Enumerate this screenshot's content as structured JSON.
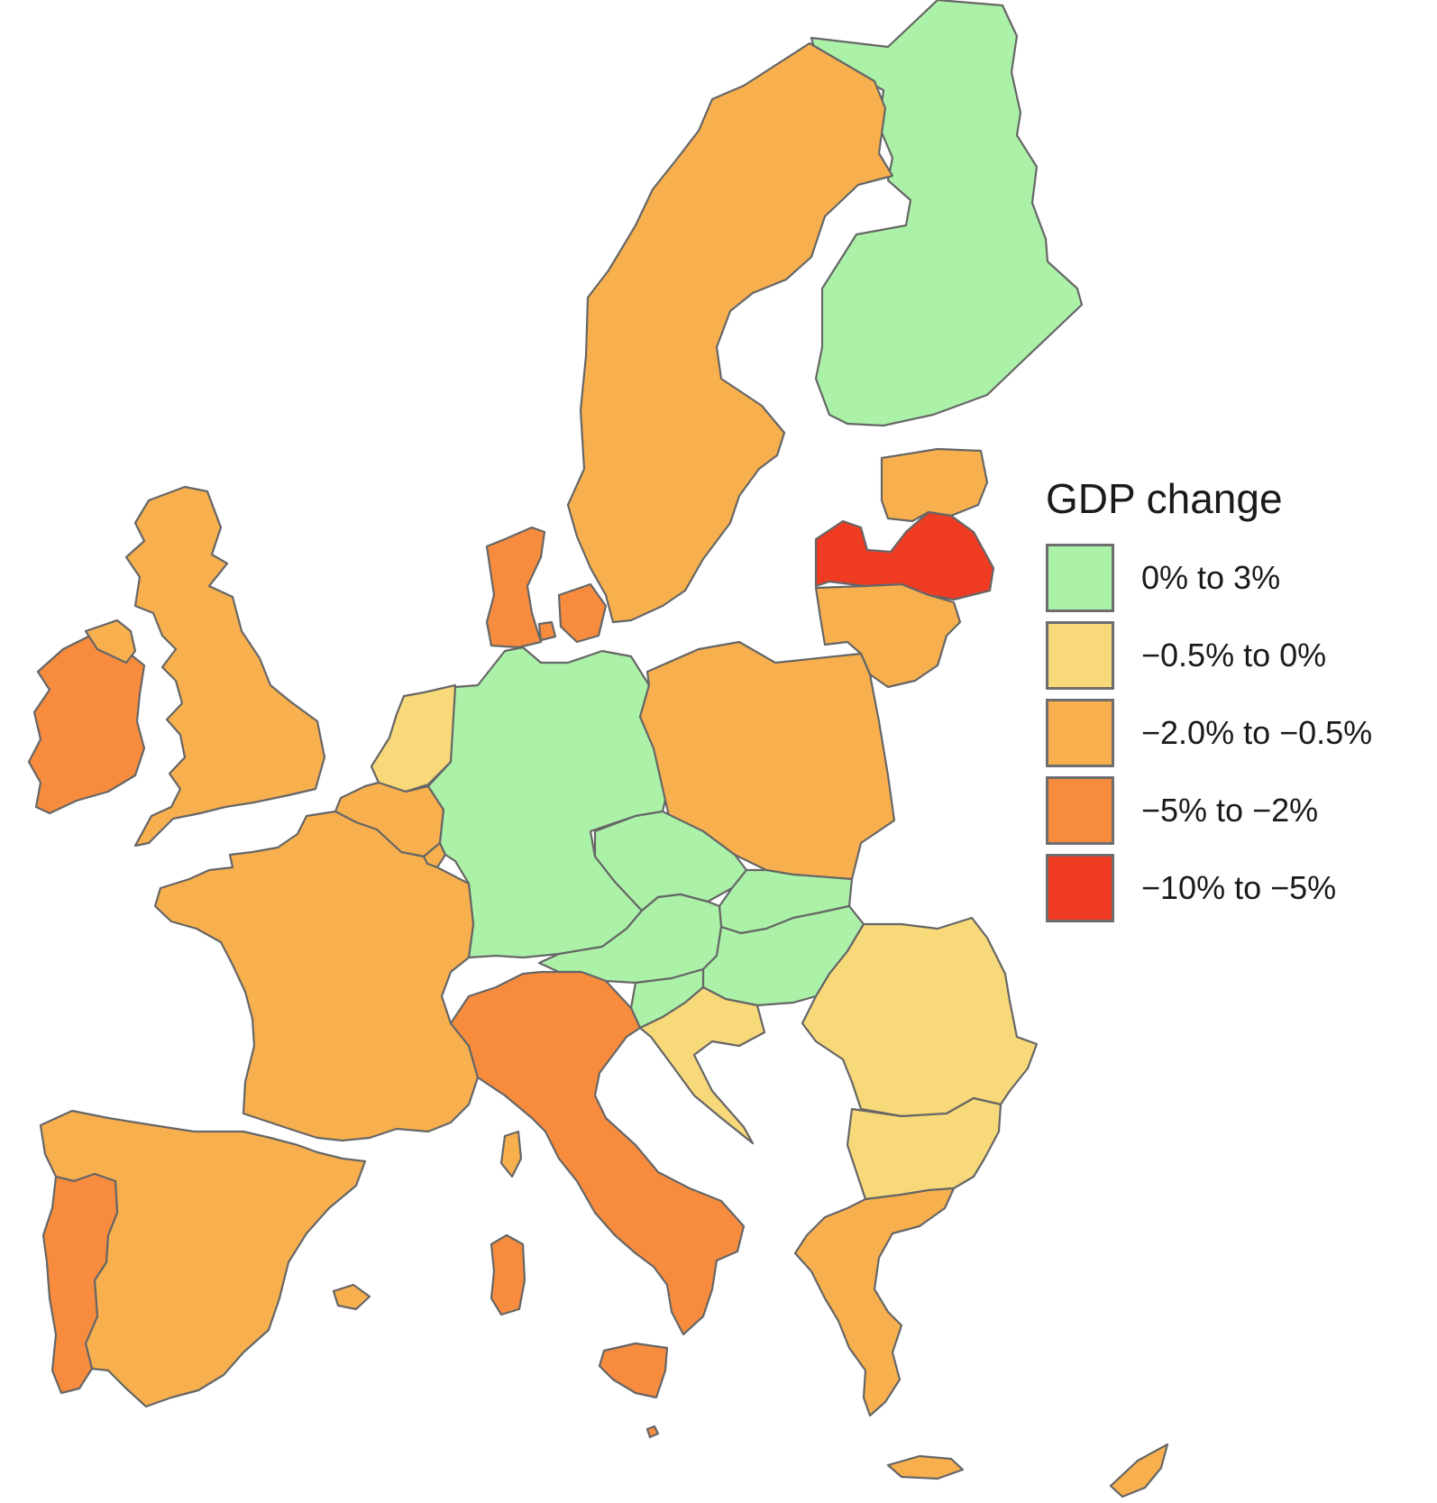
{
  "legend": {
    "title": "GDP change",
    "items": [
      {
        "label": "0% to 3%",
        "color": "#abf2a8"
      },
      {
        "label": "−0.5% to 0%",
        "color": "#f8d97a"
      },
      {
        "label": "−2.0% to −0.5%",
        "color": "#f8b04e"
      },
      {
        "label": "−5% to −2%",
        "color": "#f88c3e"
      },
      {
        "label": "−10% to −5%",
        "color": "#ee3b22"
      }
    ]
  },
  "countries": [
    {
      "name": "Finland",
      "class": 0
    },
    {
      "name": "Sweden",
      "class": 2
    },
    {
      "name": "Estonia",
      "class": 2
    },
    {
      "name": "Latvia",
      "class": 4
    },
    {
      "name": "Lithuania",
      "class": 2
    },
    {
      "name": "Denmark",
      "class": 3
    },
    {
      "name": "Ireland",
      "class": 3
    },
    {
      "name": "United Kingdom",
      "class": 2
    },
    {
      "name": "Netherlands",
      "class": 1
    },
    {
      "name": "Belgium",
      "class": 2
    },
    {
      "name": "Luxembourg",
      "class": 2
    },
    {
      "name": "Germany",
      "class": 0
    },
    {
      "name": "Poland",
      "class": 2
    },
    {
      "name": "Czechia",
      "class": 0
    },
    {
      "name": "Slovakia",
      "class": 0
    },
    {
      "name": "Austria",
      "class": 0
    },
    {
      "name": "Hungary",
      "class": 0
    },
    {
      "name": "Slovenia",
      "class": 0
    },
    {
      "name": "Croatia",
      "class": 1
    },
    {
      "name": "Romania",
      "class": 1
    },
    {
      "name": "Bulgaria",
      "class": 1
    },
    {
      "name": "Greece",
      "class": 2
    },
    {
      "name": "France",
      "class": 2
    },
    {
      "name": "Spain",
      "class": 2
    },
    {
      "name": "Portugal",
      "class": 3
    },
    {
      "name": "Italy",
      "class": 3
    },
    {
      "name": "Malta",
      "class": 3
    },
    {
      "name": "Cyprus",
      "class": 2
    }
  ]
}
